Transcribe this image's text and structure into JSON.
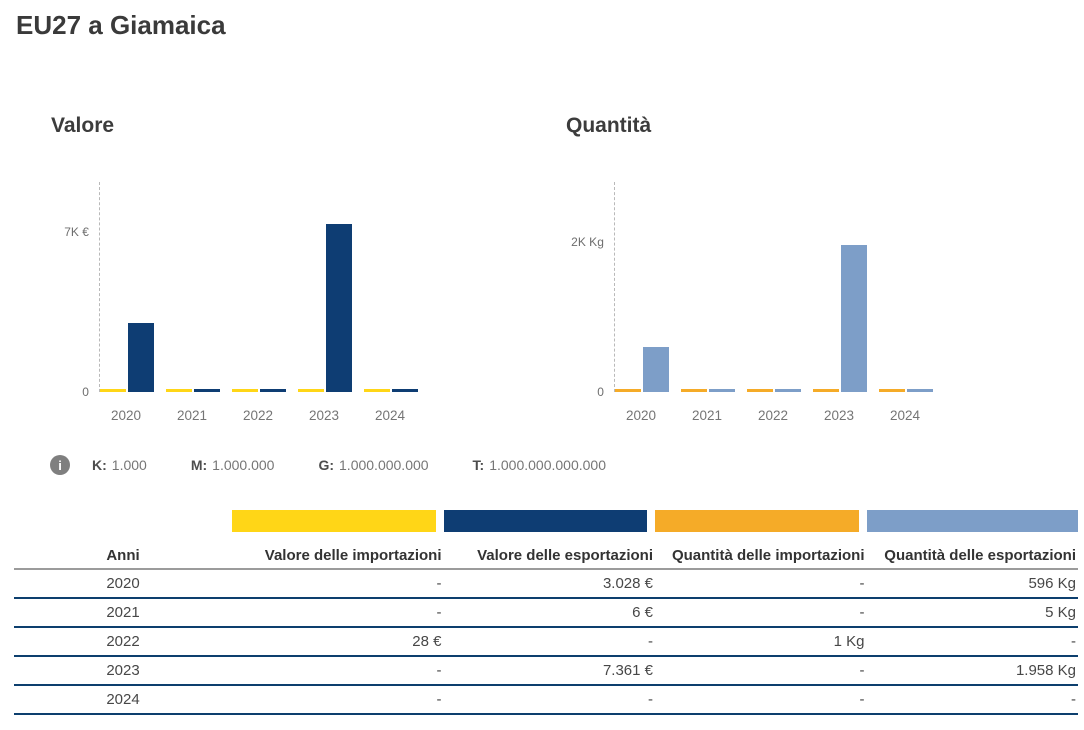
{
  "page_title": "EU27 a Giamaica",
  "colors": {
    "valore_importazioni": "#ffd617",
    "valore_esportazioni": "#0e3d73",
    "quantita_importazioni": "#f5ab28",
    "quantita_esportazioni": "#7d9ec8",
    "table_line": "#0d3f6e"
  },
  "chart_data": [
    {
      "type": "bar",
      "title": "Valore",
      "categories": [
        "2020",
        "2021",
        "2022",
        "2023",
        "2024"
      ],
      "series": [
        {
          "name": "Valore delle importazioni",
          "key": "valore-importazioni",
          "color": "#ffd617",
          "values": [
            0,
            0,
            28,
            0,
            0
          ]
        },
        {
          "name": "Valore delle esportazioni",
          "key": "valore-esportazioni",
          "color": "#0e3d73",
          "values": [
            3028,
            6,
            0,
            7361,
            0
          ]
        }
      ],
      "y_axis": {
        "max_label": "7K €",
        "max_value": 7000,
        "zero_label": "0"
      },
      "legend_position": "none",
      "grid": false
    },
    {
      "type": "bar",
      "title": "Quantità",
      "categories": [
        "2020",
        "2021",
        "2022",
        "2023",
        "2024"
      ],
      "series": [
        {
          "name": "Quantità delle importazioni",
          "key": "quantita-importazioni",
          "color": "#f5ab28",
          "values": [
            0,
            0,
            1,
            0,
            0
          ]
        },
        {
          "name": "Quantità delle esportazioni",
          "key": "quantita-esportazioni",
          "color": "#7d9ec8",
          "values": [
            596,
            5,
            0,
            1958,
            0
          ]
        }
      ],
      "y_axis": {
        "max_label": "2K Kg",
        "max_value": 2000,
        "zero_label": "0"
      },
      "legend_position": "none",
      "grid": false
    }
  ],
  "unit_legend": {
    "entries": [
      {
        "label": "K:",
        "value": "1.000"
      },
      {
        "label": "M:",
        "value": "1.000.000"
      },
      {
        "label": "G:",
        "value": "1.000.000.000"
      },
      {
        "label": "T:",
        "value": "1.000.000.000.000"
      }
    ]
  },
  "legend_swatches": [
    {
      "key": "valore-importazioni",
      "name": "Valore delle importazioni",
      "color": "#ffd617"
    },
    {
      "key": "valore-esportazioni",
      "name": "Valore delle esportazioni",
      "color": "#0e3d73"
    },
    {
      "key": "quantita-importazioni",
      "name": "Quantità delle importazioni",
      "color": "#f5ab28"
    },
    {
      "key": "quantita-esportazioni",
      "name": "Quantità delle esportazioni",
      "color": "#7d9ec8"
    }
  ],
  "table": {
    "columns": [
      "Anni",
      "Valore delle importazioni",
      "Valore delle esportazioni",
      "Quantità delle importazioni",
      "Quantità delle esportazioni"
    ],
    "rows": [
      [
        "2020",
        "-",
        "3.028 €",
        "-",
        "596 Kg"
      ],
      [
        "2021",
        "-",
        "6 €",
        "-",
        "5 Kg"
      ],
      [
        "2022",
        "28 €",
        "-",
        "1 Kg",
        "-"
      ],
      [
        "2023",
        "-",
        "7.361 €",
        "-",
        "1.958 Kg"
      ],
      [
        "2024",
        "-",
        "-",
        "-",
        "-"
      ]
    ]
  }
}
